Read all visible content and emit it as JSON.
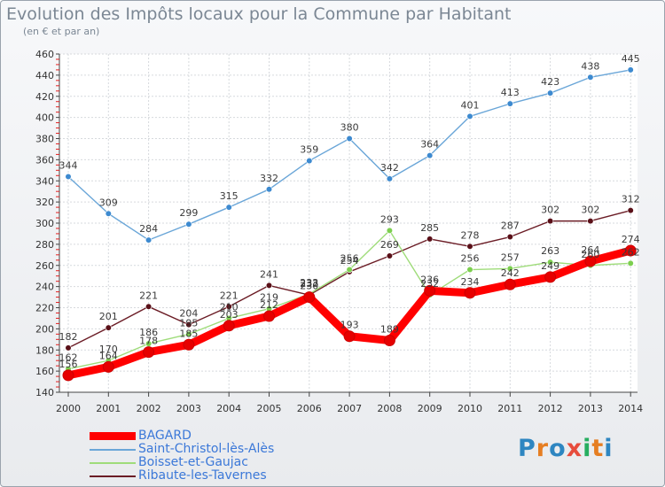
{
  "title": "Evolution des Impôts locaux pour la Commune par Habitant",
  "subtitle": "(en € et par an)",
  "logo": {
    "text": "Proxiti",
    "colors": [
      "#2e86c1",
      "#e67e22",
      "#2e86c1",
      "#e74c3c",
      "#27ae60",
      "#e67e22",
      "#2e86c1"
    ]
  },
  "chart_data": {
    "type": "line",
    "title": "Evolution des Impôts locaux pour la Commune par Habitant",
    "subtitle": "(en € et par an)",
    "x": [
      2000,
      2001,
      2002,
      2003,
      2004,
      2005,
      2006,
      2007,
      2008,
      2009,
      2010,
      2011,
      2012,
      2013,
      2014
    ],
    "ylim": [
      140,
      460
    ],
    "yticks": [
      140,
      160,
      180,
      200,
      220,
      240,
      260,
      280,
      300,
      320,
      340,
      360,
      380,
      400,
      420,
      440,
      460
    ],
    "grid": true,
    "legend_position": "bottom-left",
    "series": [
      {
        "name": "Ribaute-les-Tavernes",
        "color": "#6b1c25",
        "marker": "#5a1018",
        "values": [
          182,
          201,
          221,
          204,
          221,
          241,
          232,
          254,
          269,
          285,
          278,
          287,
          302,
          302,
          312
        ]
      },
      {
        "name": "Boisset-et-Gaujac",
        "color": "#9fdc7a",
        "marker": "#7ccf4f",
        "values": [
          162,
          170,
          186,
          195,
          210,
          219,
          233,
          256,
          293,
          232,
          256,
          257,
          263,
          260,
          262
        ]
      },
      {
        "name": "Saint-Christol-lès-Alès",
        "color": "#6aa6d8",
        "marker": "#3d8ad0",
        "values": [
          344,
          309,
          284,
          299,
          315,
          332,
          359,
          380,
          342,
          364,
          401,
          413,
          423,
          438,
          445
        ]
      },
      {
        "name": "BAGARD",
        "color": "#ff0000",
        "marker": "#e60000",
        "values": [
          156,
          164,
          178,
          185,
          203,
          212,
          230,
          193,
          189,
          236,
          234,
          242,
          249,
          264,
          274
        ]
      }
    ],
    "legend_order": [
      "BAGARD",
      "Saint-Christol-lès-Alès",
      "Boisset-et-Gaujac",
      "Ribaute-les-Tavernes"
    ]
  }
}
